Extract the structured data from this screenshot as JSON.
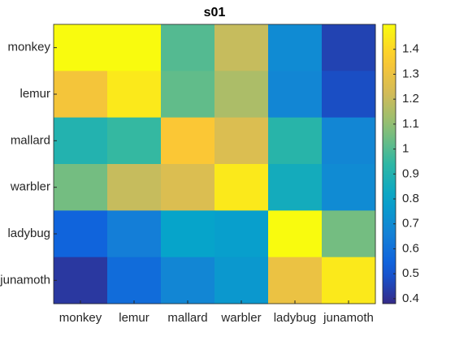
{
  "chart_data": {
    "type": "heatmap",
    "title": "s01",
    "x_categories": [
      "monkey",
      "lemur",
      "mallard",
      "warbler",
      "ladybug",
      "junamoth"
    ],
    "y_categories": [
      "monkey",
      "lemur",
      "mallard",
      "warbler",
      "ladybug",
      "junamoth"
    ],
    "values": [
      [
        1.5,
        1.5,
        1.0,
        1.2,
        0.7,
        0.45
      ],
      [
        1.33,
        1.45,
        1.02,
        1.15,
        0.68,
        0.48
      ],
      [
        0.9,
        0.95,
        1.35,
        1.25,
        0.92,
        0.68
      ],
      [
        1.05,
        1.2,
        1.25,
        1.45,
        0.85,
        0.7
      ],
      [
        0.55,
        0.65,
        0.8,
        0.78,
        1.5,
        1.05
      ],
      [
        0.42,
        0.58,
        0.68,
        0.75,
        1.3,
        1.45
      ]
    ],
    "colormap": "parula",
    "clim": [
      0.38,
      1.5
    ],
    "cticks": [
      0.4,
      0.5,
      0.6,
      0.7,
      0.8,
      0.9,
      1,
      1.1,
      1.2,
      1.3,
      1.4
    ]
  }
}
